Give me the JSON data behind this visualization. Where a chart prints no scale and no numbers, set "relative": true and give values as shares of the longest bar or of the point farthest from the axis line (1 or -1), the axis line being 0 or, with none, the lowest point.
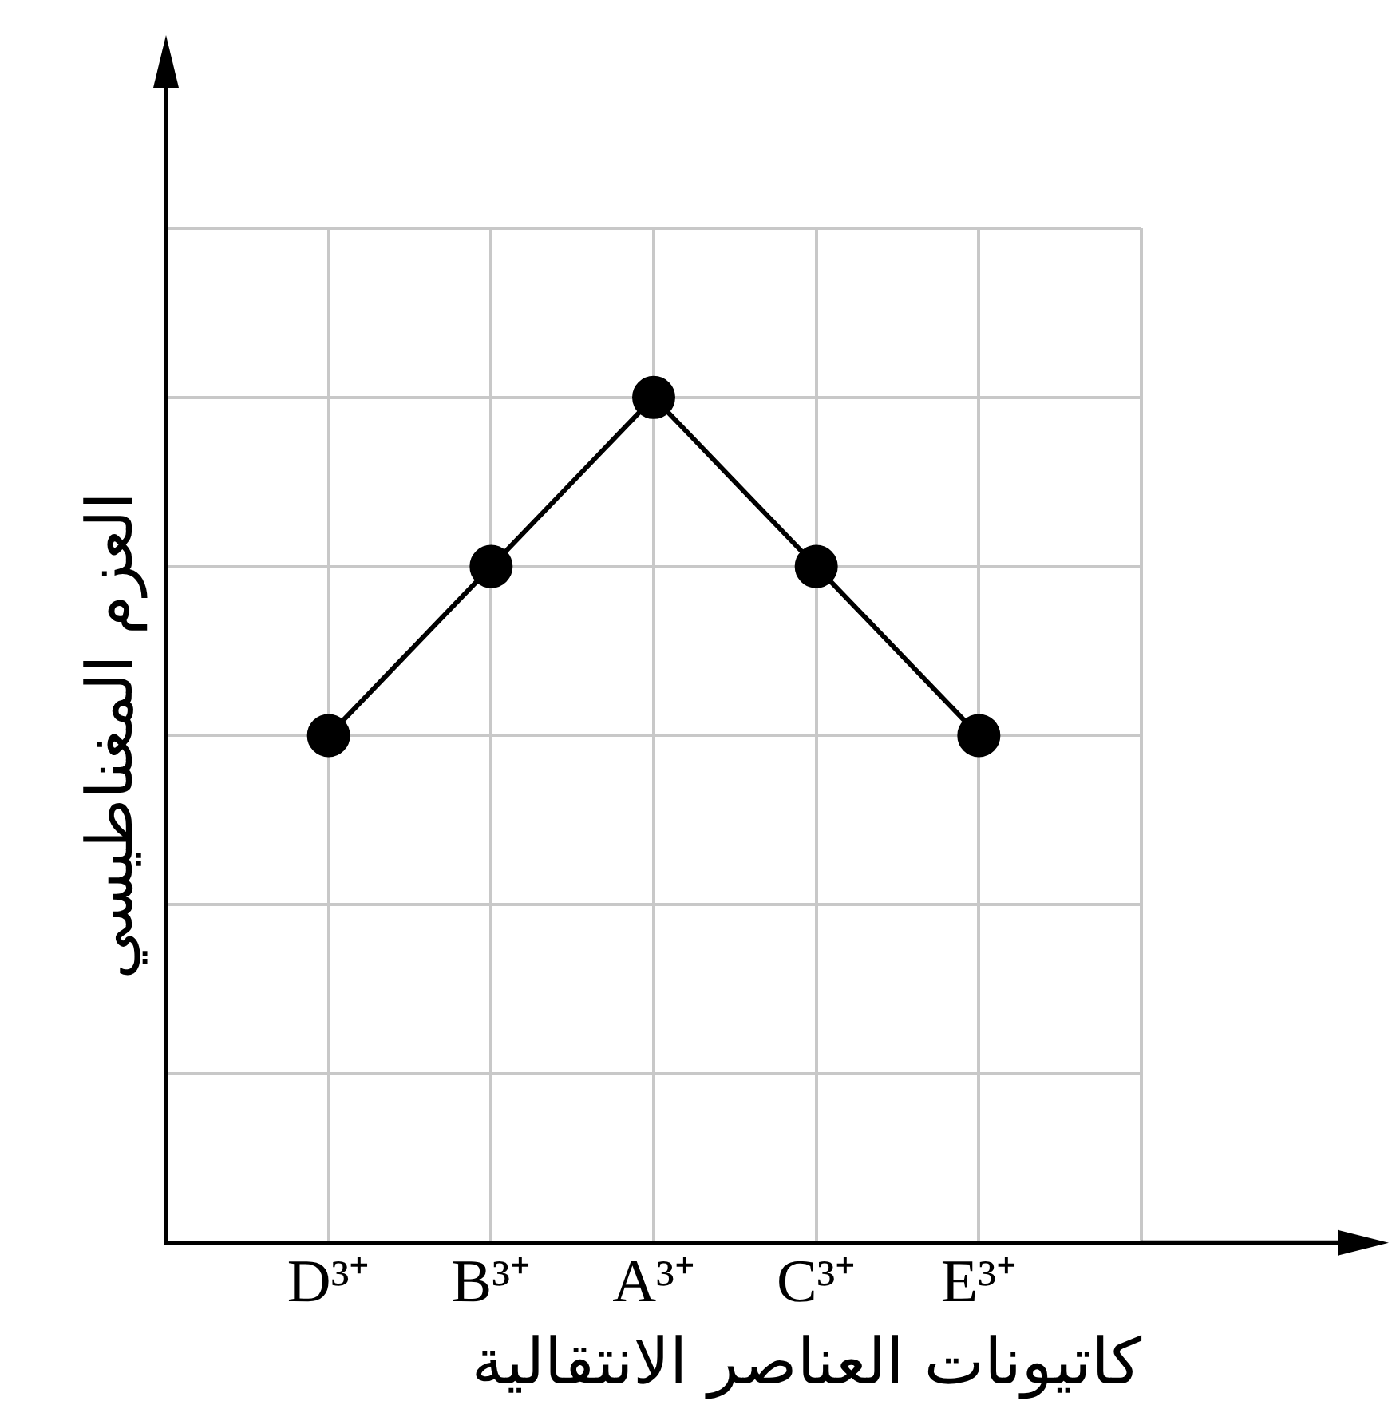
{
  "chart_data": {
    "type": "line",
    "relative": true,
    "xlabel": "كاتيونات العناصر الانتقالية",
    "ylabel": "العزم المغناطيسي",
    "categories": [
      "D³⁺",
      "B³⁺",
      "A³⁺",
      "C³⁺",
      "E³⁺"
    ],
    "series": [
      {
        "color": "#000000",
        "values": [
          0.6,
          0.8,
          1,
          0.8,
          0.6
        ]
      }
    ],
    "marker": "circle",
    "line_style": "solid",
    "grid": true
  }
}
